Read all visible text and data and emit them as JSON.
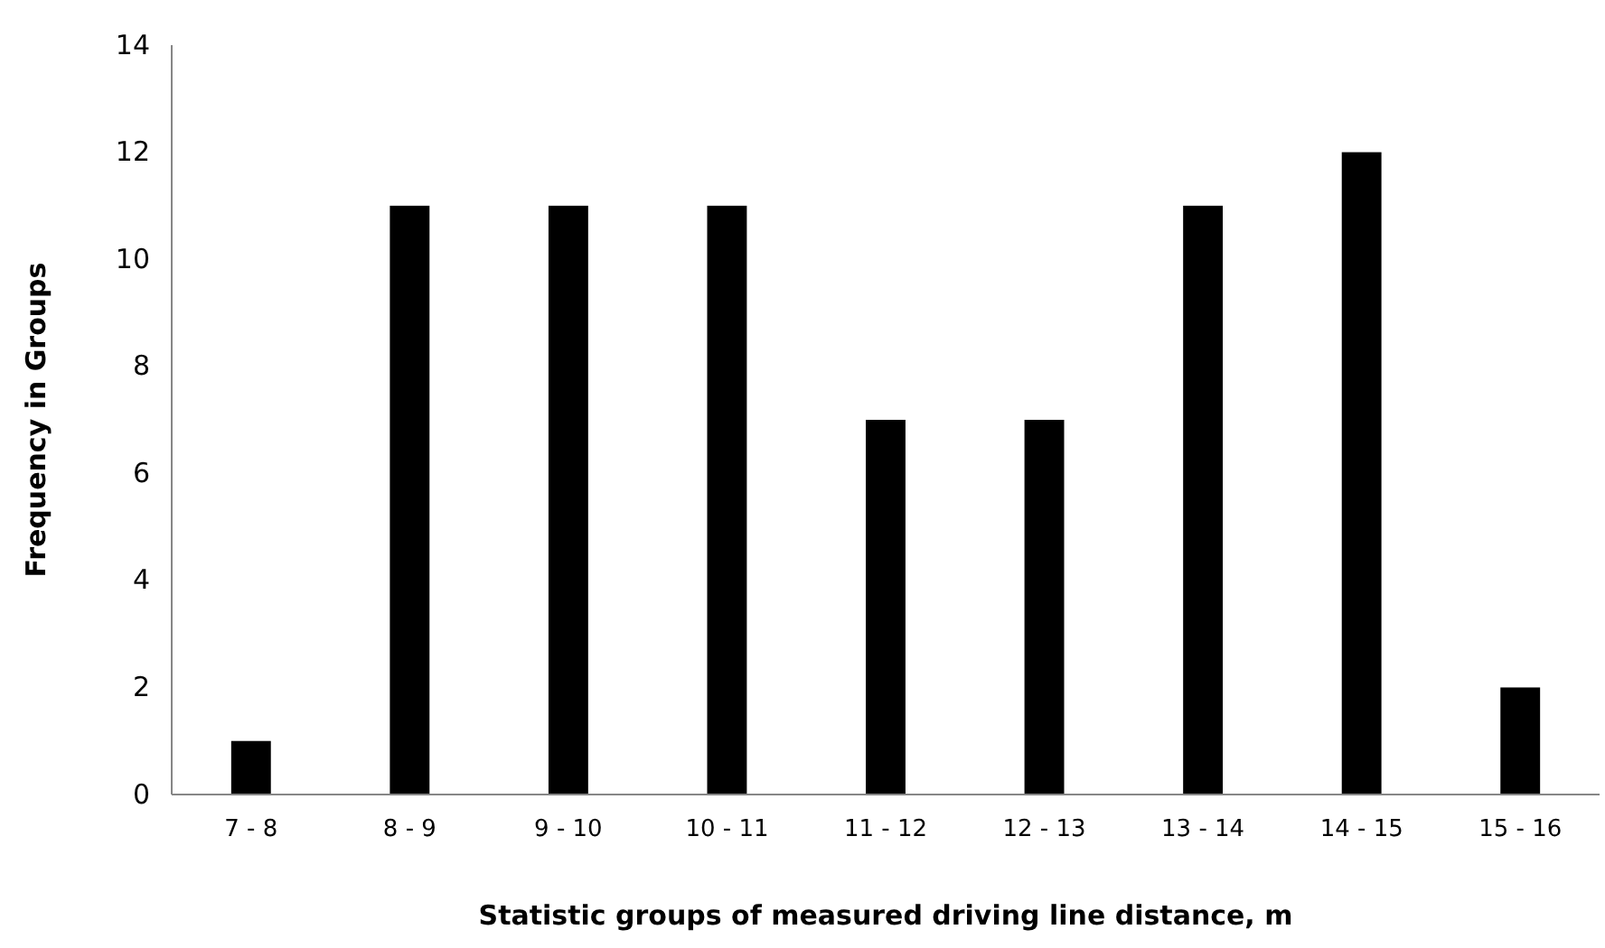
{
  "chart_data": {
    "type": "bar",
    "xlabel": "Statistic groups of measured driving line distance, m",
    "ylabel": "Frequency in Groups",
    "categories": [
      "7 - 8",
      "8 - 9",
      "9 - 10",
      "10 - 11",
      "11 - 12",
      "12 - 13",
      "13 - 14",
      "14 - 15",
      "15 - 16"
    ],
    "values": [
      1,
      11,
      11,
      11,
      7,
      7,
      11,
      12,
      2
    ],
    "color": "#000000",
    "ylim": [
      0,
      14
    ],
    "yticks": [
      0,
      2,
      4,
      6,
      8,
      10,
      12,
      14
    ],
    "grid": false
  }
}
